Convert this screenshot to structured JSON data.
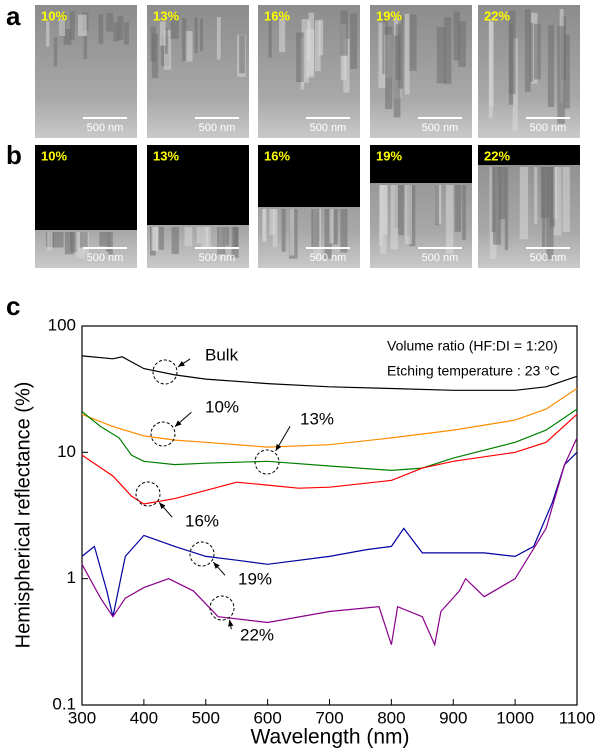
{
  "panels": [
    {
      "label": "a",
      "images": [
        {
          "label": "10%",
          "scale": "500 nm"
        },
        {
          "label": "13%",
          "scale": "500 nm"
        },
        {
          "label": "16%",
          "scale": "500 nm"
        },
        {
          "label": "19%",
          "scale": "500 nm"
        },
        {
          "label": "22%",
          "scale": "500 nm"
        }
      ]
    },
    {
      "label": "b",
      "images": [
        {
          "label": "10%",
          "scale": "500 nm"
        },
        {
          "label": "13%",
          "scale": "500 nm"
        },
        {
          "label": "16%",
          "scale": "500 nm"
        },
        {
          "label": "19%",
          "scale": "500 nm"
        },
        {
          "label": "22%",
          "scale": "500 nm"
        }
      ]
    }
  ],
  "chart_data": {
    "type": "line",
    "panel_label": "c",
    "x_label": "Wavelength (nm)",
    "y_label": "Hemispherical reflectance (%)",
    "log_y": true,
    "xlim": [
      300,
      1100
    ],
    "xticks": [
      300,
      400,
      500,
      600,
      700,
      800,
      900,
      1000,
      1100
    ],
    "ylim": [
      0.1,
      100
    ],
    "yticks": [
      0.1,
      1,
      10,
      100
    ],
    "annotations": [
      "Volume ratio (HF:DI = 1:20)",
      "Etching temperature : 23 °C"
    ],
    "series": [
      {
        "name": "Bulk",
        "color": "#000000",
        "x": [
          300,
          350,
          365,
          380,
          400,
          450,
          500,
          600,
          700,
          800,
          900,
          1000,
          1050,
          1100
        ],
        "values": [
          58,
          55,
          57,
          52,
          46,
          41,
          38,
          35,
          33,
          32,
          31,
          31,
          33,
          40
        ]
      },
      {
        "name": "10%",
        "color": "#ff8c00",
        "x": [
          300,
          350,
          400,
          450,
          500,
          600,
          700,
          800,
          900,
          1000,
          1050,
          1100
        ],
        "values": [
          20,
          16,
          13.5,
          12.5,
          12,
          11,
          11.5,
          13,
          15,
          18,
          22,
          32
        ]
      },
      {
        "name": "13%",
        "color": "#008000",
        "x": [
          300,
          330,
          360,
          380,
          400,
          450,
          500,
          600,
          700,
          800,
          850,
          900,
          1000,
          1050,
          1100
        ],
        "values": [
          21,
          16,
          13,
          9.5,
          8.5,
          8,
          8.2,
          8.5,
          7.8,
          7.2,
          7.5,
          9,
          12,
          15,
          22
        ]
      },
      {
        "name": "16%",
        "color": "#ff0000",
        "x": [
          300,
          350,
          380,
          400,
          450,
          500,
          550,
          600,
          650,
          700,
          800,
          850,
          900,
          1000,
          1050,
          1100
        ],
        "values": [
          9.5,
          6.5,
          4.5,
          3.9,
          4.3,
          5,
          5.8,
          5.5,
          5.2,
          5.3,
          6,
          7.5,
          8.5,
          10,
          12,
          20
        ]
      },
      {
        "name": "19%",
        "color": "#0000a0",
        "x": [
          300,
          320,
          340,
          350,
          370,
          400,
          450,
          500,
          550,
          600,
          700,
          760,
          800,
          820,
          850,
          900,
          950,
          1000,
          1030,
          1060,
          1080,
          1100
        ],
        "values": [
          1.5,
          1.8,
          0.8,
          0.5,
          1.5,
          2.2,
          1.8,
          1.5,
          1.4,
          1.3,
          1.5,
          1.7,
          1.8,
          2.5,
          1.6,
          1.6,
          1.6,
          1.5,
          1.8,
          4,
          8,
          10
        ]
      },
      {
        "name": "22%",
        "color": "#8b008b",
        "x": [
          300,
          330,
          350,
          370,
          400,
          440,
          480,
          520,
          600,
          700,
          780,
          800,
          810,
          850,
          870,
          880,
          910,
          920,
          950,
          1000,
          1050,
          1080,
          1100
        ],
        "values": [
          1.3,
          0.7,
          0.5,
          0.7,
          0.85,
          1.0,
          0.8,
          0.5,
          0.45,
          0.55,
          0.6,
          0.3,
          0.6,
          0.5,
          0.3,
          0.55,
          0.8,
          1.0,
          0.72,
          1.0,
          2.5,
          8,
          13
        ]
      }
    ]
  }
}
